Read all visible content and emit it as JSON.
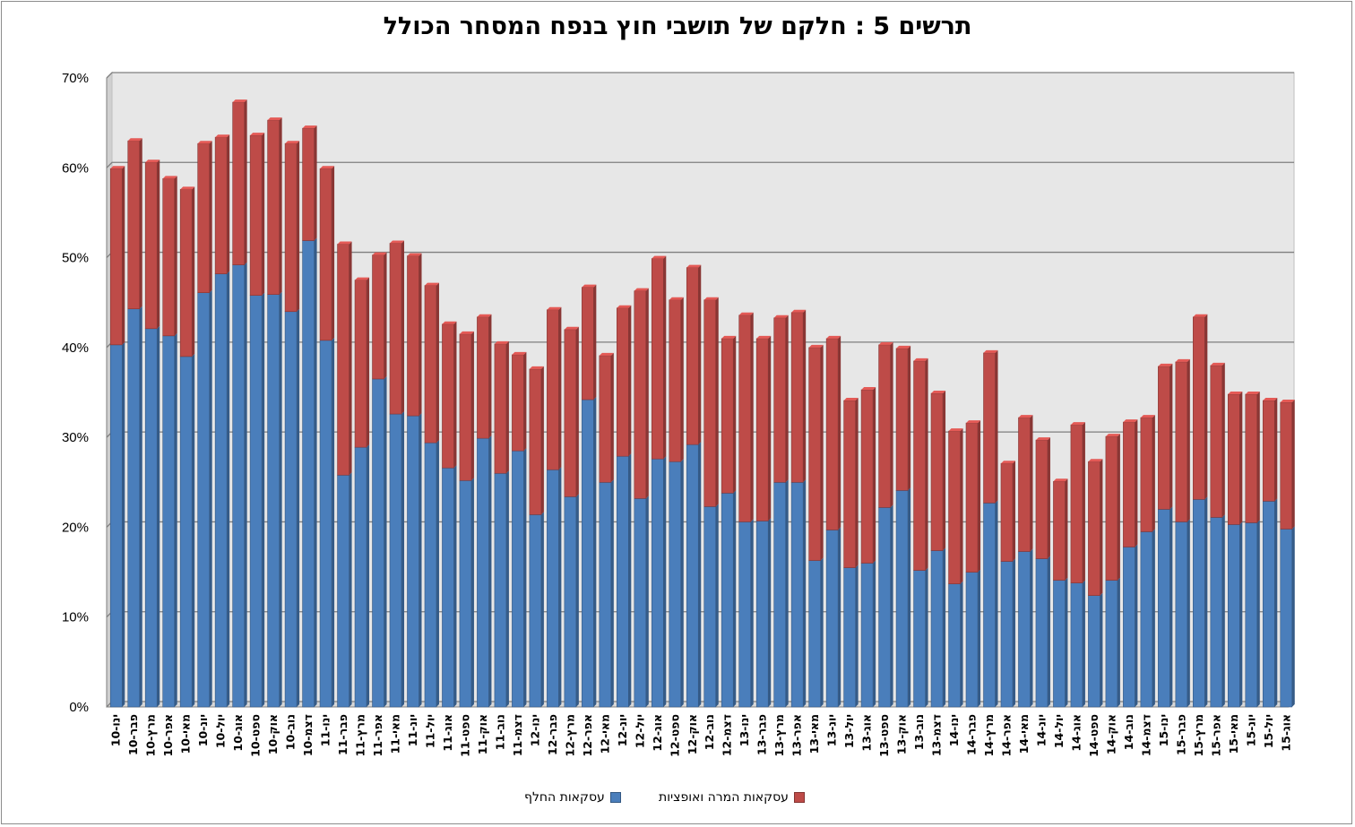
{
  "colors": {
    "series_blue": "#4a7ebb",
    "series_red": "#be4b48",
    "plot_bg": "#e7e7e7",
    "grid": "#7f7f7f"
  },
  "chart_data": {
    "type": "bar",
    "stacked": true,
    "title": "תרשים 5 : חלקם של תושבי חוץ בנפח המסחר הכולל",
    "xlabel": "",
    "ylabel": "",
    "ylim": [
      0,
      70
    ],
    "yticks": [
      "0%",
      "10%",
      "20%",
      "30%",
      "40%",
      "50%",
      "60%",
      "70%"
    ],
    "grid": true,
    "legend_position": "bottom",
    "categories": [
      "ינו-10",
      "פבר-10",
      "מרץ-10",
      "אפר-10",
      "מאי-10",
      "יונ-10",
      "יול-10",
      "אוג-10",
      "ספט-10",
      "אוק-10",
      "נוב-10",
      "דצמ-10",
      "ינו-11",
      "פבר-11",
      "מרץ-11",
      "אפר-11",
      "מאי-11",
      "יונ-11",
      "יול-11",
      "אוג-11",
      "ספט-11",
      "אוק-11",
      "נוב-11",
      "דצמ-11",
      "ינו-12",
      "פבר-12",
      "מרץ-12",
      "אפר-12",
      "מאי-12",
      "יונ-12",
      "יול-12",
      "אוג-12",
      "ספט-12",
      "אוק-12",
      "נוב-12",
      "דצמ-12",
      "ינו-13",
      "פבר-13",
      "מרץ-13",
      "אפר-13",
      "מאי-13",
      "יונ-13",
      "יול-13",
      "אוג-13",
      "ספט-13",
      "אוק-13",
      "נוב-13",
      "דצמ-13",
      "ינו-14",
      "פבר-14",
      "מרץ-14",
      "אפר-14",
      "מאי-14",
      "יונ-14",
      "יול-14",
      "אוג-14",
      "ספט-14",
      "אוק-14",
      "נוב-14",
      "דצמ-14",
      "ינו-15",
      "פבר-15",
      "מרץ-15",
      "אפר-15",
      "מאי-15",
      "יונ-15",
      "יול-15",
      "אוג-15"
    ],
    "series": [
      {
        "name": "עסקאות החלף",
        "color": "#4a7ebb",
        "values": [
          40.3,
          44.3,
          42.1,
          41.3,
          39.0,
          46.1,
          48.2,
          49.2,
          45.8,
          45.9,
          44.0,
          51.9,
          40.8,
          25.8,
          28.9,
          36.5,
          32.6,
          32.4,
          29.4,
          26.6,
          25.2,
          29.9,
          26.0,
          28.5,
          21.4,
          26.4,
          23.4,
          34.2,
          25.0,
          27.9,
          23.2,
          27.6,
          27.3,
          29.2,
          22.3,
          23.8,
          20.6,
          20.7,
          25.0,
          25.0,
          16.3,
          19.7,
          15.5,
          16.0,
          22.2,
          24.1,
          15.2,
          17.4,
          13.7,
          15.0,
          22.7,
          16.2,
          17.3,
          16.5,
          14.1,
          13.8,
          12.4,
          14.1,
          17.8,
          19.5,
          22.0,
          20.6,
          23.1,
          21.1,
          20.3,
          20.5,
          22.9,
          19.8
        ]
      },
      {
        "name": "עסקאות המרה ואופציות",
        "color": "#be4b48",
        "values": [
          19.6,
          18.7,
          18.5,
          17.5,
          18.6,
          16.6,
          15.2,
          18.1,
          17.8,
          19.4,
          18.7,
          12.5,
          19.1,
          25.7,
          18.6,
          13.8,
          19.0,
          17.8,
          17.5,
          16.0,
          16.3,
          13.5,
          14.4,
          10.7,
          16.2,
          17.8,
          18.6,
          12.5,
          14.1,
          16.5,
          23.1,
          22.3,
          18.0,
          19.7,
          23.0,
          17.2,
          23.0,
          20.3,
          18.3,
          18.9,
          23.7,
          21.3,
          18.6,
          19.3,
          18.1,
          15.8,
          23.3,
          17.5,
          17.0,
          16.6,
          16.7,
          10.9,
          14.9,
          13.2,
          11.0,
          17.6,
          14.9,
          16.0,
          13.9,
          12.7,
          15.9,
          17.8,
          20.3,
          16.9,
          14.5,
          14.3,
          11.2,
          14.1
        ]
      }
    ]
  }
}
